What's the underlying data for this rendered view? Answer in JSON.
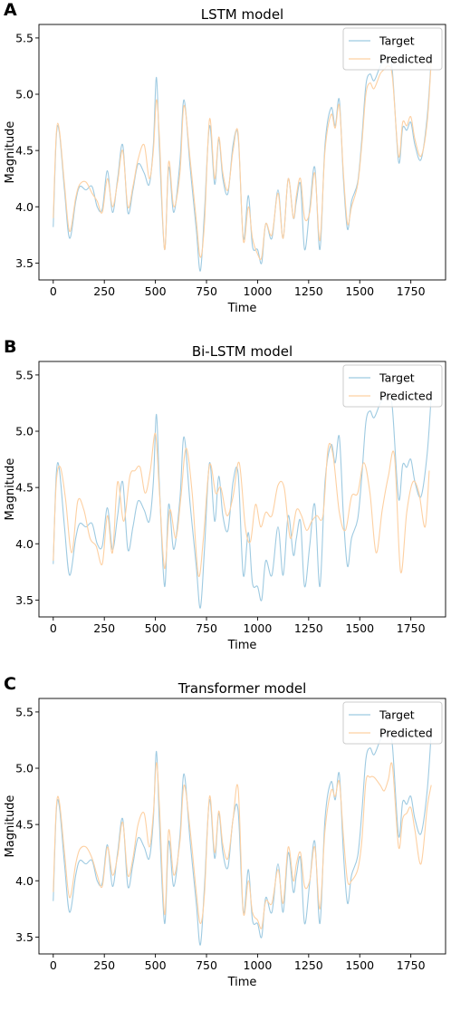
{
  "panels": [
    {
      "letter": "A"
    },
    {
      "letter": "B"
    },
    {
      "letter": "C"
    }
  ],
  "chart_data": [
    {
      "type": "line",
      "title": "LSTM model",
      "xlabel": "Time",
      "ylabel": "Magnitude",
      "xlim": [
        -70,
        1920
      ],
      "ylim": [
        3.35,
        5.62
      ],
      "xticks": [
        0,
        250,
        500,
        750,
        1000,
        1250,
        1500,
        1750
      ],
      "yticks": [
        3.5,
        4.0,
        4.5,
        5.0,
        5.5
      ],
      "grid": false,
      "legend": "top-right",
      "series": [
        {
          "name": "Target",
          "color": "#9ecae1",
          "x": [
            0,
            15,
            30,
            55,
            80,
            110,
            130,
            160,
            190,
            215,
            240,
            265,
            290,
            315,
            340,
            365,
            390,
            415,
            445,
            470,
            490,
            505,
            520,
            545,
            565,
            590,
            620,
            640,
            670,
            700,
            720,
            740,
            765,
            790,
            810,
            830,
            855,
            880,
            905,
            930,
            955,
            975,
            1000,
            1020,
            1040,
            1070,
            1100,
            1125,
            1150,
            1175,
            1190,
            1210,
            1230,
            1255,
            1280,
            1305,
            1330,
            1360,
            1380,
            1400,
            1420,
            1440,
            1460,
            1490,
            1510,
            1530,
            1550,
            1570,
            1600,
            1620,
            1640,
            1660,
            1690,
            1710,
            1730,
            1750,
            1770,
            1800,
            1830,
            1850
          ],
          "y": [
            3.82,
            4.62,
            4.66,
            4.15,
            3.72,
            4.05,
            4.18,
            4.15,
            4.18,
            4.0,
            3.98,
            4.32,
            3.95,
            4.25,
            4.55,
            3.95,
            4.15,
            4.38,
            4.3,
            4.2,
            4.55,
            5.15,
            4.5,
            3.62,
            4.35,
            3.95,
            4.4,
            4.95,
            4.35,
            3.8,
            3.43,
            3.95,
            4.72,
            4.2,
            4.6,
            4.25,
            4.12,
            4.55,
            4.62,
            3.72,
            4.1,
            3.65,
            3.62,
            3.5,
            3.85,
            3.72,
            4.15,
            3.72,
            4.25,
            3.9,
            4.05,
            4.2,
            3.62,
            3.98,
            4.35,
            3.62,
            4.55,
            4.88,
            4.72,
            4.95,
            4.25,
            3.8,
            4.05,
            4.22,
            4.6,
            5.08,
            5.18,
            5.12,
            5.25,
            5.3,
            5.32,
            5.2,
            4.4,
            4.7,
            4.68,
            4.75,
            4.55,
            4.42,
            4.8,
            5.32
          ]
        },
        {
          "name": "Predicted",
          "color": "#fdd0a2",
          "x": [
            0,
            15,
            30,
            55,
            80,
            110,
            130,
            160,
            190,
            215,
            240,
            265,
            290,
            315,
            340,
            365,
            390,
            415,
            445,
            470,
            490,
            505,
            520,
            545,
            565,
            590,
            620,
            640,
            670,
            700,
            720,
            740,
            765,
            790,
            810,
            830,
            855,
            880,
            905,
            930,
            955,
            975,
            1000,
            1020,
            1040,
            1070,
            1100,
            1125,
            1150,
            1175,
            1190,
            1210,
            1230,
            1255,
            1280,
            1305,
            1330,
            1360,
            1380,
            1400,
            1420,
            1440,
            1460,
            1490,
            1510,
            1530,
            1550,
            1570,
            1600,
            1620,
            1640,
            1660,
            1690,
            1710,
            1730,
            1750,
            1770,
            1800,
            1830,
            1850
          ],
          "y": [
            3.9,
            4.65,
            4.68,
            4.2,
            3.78,
            4.08,
            4.2,
            4.22,
            4.12,
            4.05,
            3.95,
            4.25,
            4.0,
            4.22,
            4.5,
            4.0,
            4.18,
            4.42,
            4.55,
            4.25,
            4.5,
            4.95,
            4.6,
            3.62,
            4.4,
            4.0,
            4.3,
            4.9,
            4.42,
            3.88,
            3.55,
            3.85,
            4.78,
            4.25,
            4.62,
            4.3,
            4.15,
            4.5,
            4.65,
            3.7,
            4.0,
            3.72,
            3.58,
            3.55,
            3.85,
            3.75,
            4.12,
            3.72,
            4.25,
            3.9,
            4.1,
            4.25,
            3.9,
            3.95,
            4.3,
            3.7,
            4.5,
            4.82,
            4.7,
            4.9,
            4.3,
            3.85,
            4.0,
            4.2,
            4.55,
            5.0,
            5.1,
            5.05,
            5.18,
            5.22,
            5.25,
            5.15,
            4.45,
            4.75,
            4.72,
            4.8,
            4.6,
            4.45,
            4.75,
            5.3
          ]
        }
      ]
    },
    {
      "type": "line",
      "title": "Bi-LSTM model",
      "xlabel": "Time",
      "ylabel": "Magnitude",
      "xlim": [
        -70,
        1920
      ],
      "ylim": [
        3.35,
        5.62
      ],
      "xticks": [
        0,
        250,
        500,
        750,
        1000,
        1250,
        1500,
        1750
      ],
      "yticks": [
        3.5,
        4.0,
        4.5,
        5.0,
        5.5
      ],
      "grid": false,
      "legend": "top-right",
      "series": [
        {
          "name": "Target",
          "color": "#9ecae1",
          "x": [
            0,
            15,
            30,
            55,
            80,
            110,
            130,
            160,
            190,
            215,
            240,
            265,
            290,
            315,
            340,
            365,
            390,
            415,
            445,
            470,
            490,
            505,
            520,
            545,
            565,
            590,
            620,
            640,
            670,
            700,
            720,
            740,
            765,
            790,
            810,
            830,
            855,
            880,
            905,
            930,
            955,
            975,
            1000,
            1020,
            1040,
            1070,
            1100,
            1125,
            1150,
            1175,
            1190,
            1210,
            1230,
            1255,
            1280,
            1305,
            1330,
            1360,
            1380,
            1400,
            1420,
            1440,
            1460,
            1490,
            1510,
            1530,
            1550,
            1570,
            1600,
            1620,
            1640,
            1660,
            1690,
            1710,
            1730,
            1750,
            1770,
            1800,
            1830,
            1850
          ],
          "y": [
            3.82,
            4.62,
            4.66,
            4.15,
            3.72,
            4.05,
            4.18,
            4.15,
            4.18,
            4.0,
            3.98,
            4.32,
            3.95,
            4.25,
            4.55,
            3.95,
            4.15,
            4.38,
            4.3,
            4.2,
            4.55,
            5.15,
            4.5,
            3.62,
            4.35,
            3.95,
            4.4,
            4.95,
            4.35,
            3.8,
            3.43,
            3.95,
            4.72,
            4.2,
            4.6,
            4.25,
            4.12,
            4.55,
            4.62,
            3.72,
            4.1,
            3.65,
            3.62,
            3.5,
            3.85,
            3.72,
            4.15,
            3.72,
            4.25,
            3.9,
            4.05,
            4.2,
            3.62,
            3.98,
            4.35,
            3.62,
            4.55,
            4.88,
            4.72,
            4.95,
            4.25,
            3.8,
            4.05,
            4.22,
            4.6,
            5.08,
            5.18,
            5.12,
            5.25,
            5.3,
            5.32,
            5.2,
            4.4,
            4.7,
            4.68,
            4.75,
            4.55,
            4.42,
            4.8,
            5.32
          ]
        },
        {
          "name": "Predicted",
          "color": "#fdd0a2",
          "x": [
            0,
            15,
            35,
            60,
            90,
            120,
            150,
            180,
            210,
            240,
            265,
            290,
            315,
            345,
            375,
            400,
            425,
            450,
            475,
            500,
            520,
            545,
            570,
            600,
            625,
            650,
            680,
            710,
            735,
            765,
            795,
            820,
            850,
            880,
            910,
            940,
            965,
            990,
            1015,
            1040,
            1070,
            1100,
            1130,
            1160,
            1190,
            1215,
            1240,
            1265,
            1290,
            1320,
            1345,
            1370,
            1400,
            1430,
            1460,
            1490,
            1520,
            1550,
            1580,
            1610,
            1640,
            1670,
            1700,
            1730,
            1760,
            1790,
            1820,
            1840
          ],
          "y": [
            3.85,
            4.55,
            4.68,
            4.4,
            3.92,
            4.38,
            4.3,
            4.05,
            3.98,
            3.82,
            4.25,
            3.92,
            4.55,
            4.2,
            4.6,
            4.65,
            4.68,
            4.45,
            4.65,
            4.98,
            4.45,
            3.78,
            4.3,
            4.05,
            4.42,
            4.85,
            4.45,
            3.72,
            4.05,
            4.7,
            4.45,
            4.5,
            4.25,
            4.42,
            4.72,
            4.15,
            4.02,
            4.35,
            4.15,
            4.28,
            4.25,
            4.52,
            4.5,
            4.05,
            4.3,
            4.25,
            4.12,
            4.2,
            4.25,
            4.25,
            4.85,
            4.78,
            4.28,
            4.12,
            4.42,
            4.45,
            4.72,
            4.45,
            3.92,
            4.3,
            4.6,
            4.78,
            3.75,
            4.28,
            4.55,
            4.45,
            4.15,
            4.65
          ]
        }
      ]
    },
    {
      "type": "line",
      "title": "Transformer model",
      "xlabel": "Time",
      "ylabel": "Magnitude",
      "xlim": [
        -70,
        1920
      ],
      "ylim": [
        3.35,
        5.62
      ],
      "xticks": [
        0,
        250,
        500,
        750,
        1000,
        1250,
        1500,
        1750
      ],
      "yticks": [
        3.5,
        4.0,
        4.5,
        5.0,
        5.5
      ],
      "grid": false,
      "legend": "top-right",
      "series": [
        {
          "name": "Target",
          "color": "#9ecae1",
          "x": [
            0,
            15,
            30,
            55,
            80,
            110,
            130,
            160,
            190,
            215,
            240,
            265,
            290,
            315,
            340,
            365,
            390,
            415,
            445,
            470,
            490,
            505,
            520,
            545,
            565,
            590,
            620,
            640,
            670,
            700,
            720,
            740,
            765,
            790,
            810,
            830,
            855,
            880,
            905,
            930,
            955,
            975,
            1000,
            1020,
            1040,
            1070,
            1100,
            1125,
            1150,
            1175,
            1190,
            1210,
            1230,
            1255,
            1280,
            1305,
            1330,
            1360,
            1380,
            1400,
            1420,
            1440,
            1460,
            1490,
            1510,
            1530,
            1550,
            1570,
            1600,
            1620,
            1640,
            1660,
            1690,
            1710,
            1730,
            1750,
            1770,
            1800,
            1830,
            1850
          ],
          "y": [
            3.82,
            4.62,
            4.66,
            4.15,
            3.72,
            4.05,
            4.18,
            4.15,
            4.18,
            4.0,
            3.98,
            4.32,
            3.95,
            4.25,
            4.55,
            3.95,
            4.15,
            4.38,
            4.3,
            4.2,
            4.55,
            5.15,
            4.5,
            3.62,
            4.35,
            3.95,
            4.4,
            4.95,
            4.35,
            3.8,
            3.43,
            3.95,
            4.72,
            4.2,
            4.6,
            4.25,
            4.12,
            4.55,
            4.62,
            3.72,
            4.1,
            3.65,
            3.62,
            3.5,
            3.85,
            3.72,
            4.15,
            3.72,
            4.25,
            3.9,
            4.05,
            4.2,
            3.62,
            3.98,
            4.35,
            3.62,
            4.55,
            4.88,
            4.72,
            4.95,
            4.25,
            3.8,
            4.05,
            4.22,
            4.6,
            5.08,
            5.18,
            5.12,
            5.25,
            5.3,
            5.32,
            5.2,
            4.4,
            4.7,
            4.68,
            4.75,
            4.55,
            4.42,
            4.8,
            5.32
          ]
        },
        {
          "name": "Predicted",
          "color": "#fdd0a2",
          "x": [
            0,
            15,
            30,
            55,
            80,
            110,
            130,
            160,
            190,
            215,
            240,
            265,
            290,
            315,
            340,
            365,
            390,
            415,
            445,
            470,
            490,
            505,
            520,
            545,
            565,
            590,
            620,
            640,
            670,
            700,
            720,
            740,
            765,
            790,
            810,
            830,
            855,
            880,
            905,
            930,
            955,
            975,
            1000,
            1020,
            1040,
            1070,
            1100,
            1125,
            1150,
            1175,
            1190,
            1210,
            1230,
            1255,
            1280,
            1305,
            1330,
            1360,
            1380,
            1400,
            1420,
            1440,
            1460,
            1490,
            1510,
            1530,
            1550,
            1570,
            1600,
            1620,
            1640,
            1660,
            1690,
            1710,
            1730,
            1750,
            1770,
            1800,
            1830,
            1850
          ],
          "y": [
            3.9,
            4.65,
            4.7,
            4.25,
            3.85,
            4.15,
            4.28,
            4.3,
            4.2,
            4.05,
            3.95,
            4.3,
            4.05,
            4.22,
            4.52,
            4.05,
            4.2,
            4.5,
            4.6,
            4.3,
            4.6,
            5.05,
            4.65,
            3.7,
            4.45,
            4.05,
            4.35,
            4.85,
            4.45,
            3.9,
            3.62,
            3.88,
            4.75,
            4.25,
            4.62,
            4.32,
            4.2,
            4.55,
            4.82,
            3.72,
            4.0,
            3.72,
            3.65,
            3.58,
            3.82,
            3.8,
            4.1,
            3.8,
            4.3,
            4.0,
            4.15,
            4.25,
            3.95,
            4.0,
            4.3,
            3.75,
            4.45,
            4.8,
            4.75,
            4.88,
            4.4,
            4.0,
            4.0,
            4.1,
            4.35,
            4.88,
            4.92,
            4.92,
            4.85,
            4.8,
            4.9,
            5.02,
            4.3,
            4.55,
            4.6,
            4.65,
            4.45,
            4.15,
            4.65,
            4.85
          ]
        }
      ]
    }
  ]
}
